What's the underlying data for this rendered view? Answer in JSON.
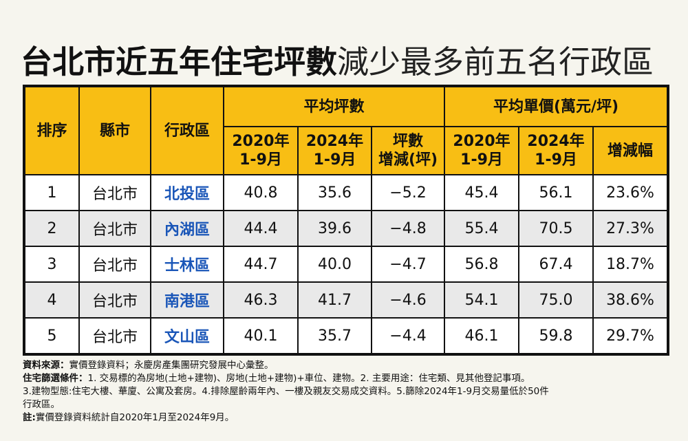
{
  "title": {
    "bold": "台北市近五年住宅坪數",
    "light": "減少最多前五名行政區"
  },
  "table": {
    "headers": {
      "rank": "排序",
      "county": "縣市",
      "district": "行政區",
      "group_area": "平均坪數",
      "group_price": "平均單價(萬元/坪)",
      "area_2020": [
        "2020年",
        "1-9月"
      ],
      "area_2024": [
        "2024年",
        "1-9月"
      ],
      "area_change": [
        "坪數",
        "增減(坪)"
      ],
      "price_2020": [
        "2020年",
        "1-9月"
      ],
      "price_2024": [
        "2024年",
        "1-9月"
      ],
      "price_change": "增減幅"
    },
    "rows": [
      {
        "rank": "1",
        "county": "台北市",
        "district": "北投區",
        "area_2020": "40.8",
        "area_2024": "35.6",
        "area_change": "−5.2",
        "price_2020": "45.4",
        "price_2024": "56.1",
        "price_change": "23.6%"
      },
      {
        "rank": "2",
        "county": "台北市",
        "district": "內湖區",
        "area_2020": "44.4",
        "area_2024": "39.6",
        "area_change": "−4.8",
        "price_2020": "55.4",
        "price_2024": "70.5",
        "price_change": "27.3%"
      },
      {
        "rank": "3",
        "county": "台北市",
        "district": "士林區",
        "area_2020": "44.7",
        "area_2024": "40.0",
        "area_change": "−4.7",
        "price_2020": "56.8",
        "price_2024": "67.4",
        "price_change": "18.7%"
      },
      {
        "rank": "4",
        "county": "台北市",
        "district": "南港區",
        "area_2020": "46.3",
        "area_2024": "41.7",
        "area_change": "−4.6",
        "price_2020": "54.1",
        "price_2024": "75.0",
        "price_change": "38.6%"
      },
      {
        "rank": "5",
        "county": "台北市",
        "district": "文山區",
        "area_2020": "40.1",
        "area_2024": "35.7",
        "area_change": "−4.4",
        "price_2020": "46.1",
        "price_2024": "59.8",
        "price_change": "29.7%"
      }
    ]
  },
  "notes": {
    "source_label": "資料來源：",
    "source_text": "實價登錄資料；永慶房產集團研究發展中心彙整。",
    "filter_label": "住宅篩選條件：",
    "filter_text": "1. 交易標的為房地(土地+建物)、房地(土地+建物)+車位、建物。2. 主要用途：住宅類、見其他登記事項。",
    "filter_text_2": "3.建物型態:住宅大樓、華廈、公寓及套房。4.排除屋齡兩年內、一樓及親友交易成交資料。5.篩除2024年1-9月交易量低於50件",
    "filter_text_3": "行政區。",
    "note_label": "註:",
    "note_text": "實價登錄資料統計自2020年1月至2024年9月。"
  },
  "colors": {
    "header_bg": "#f8be14",
    "district_text": "#1a56b8",
    "alt_row": "#e9e9e9",
    "page_bg": "#f6f5ee"
  }
}
